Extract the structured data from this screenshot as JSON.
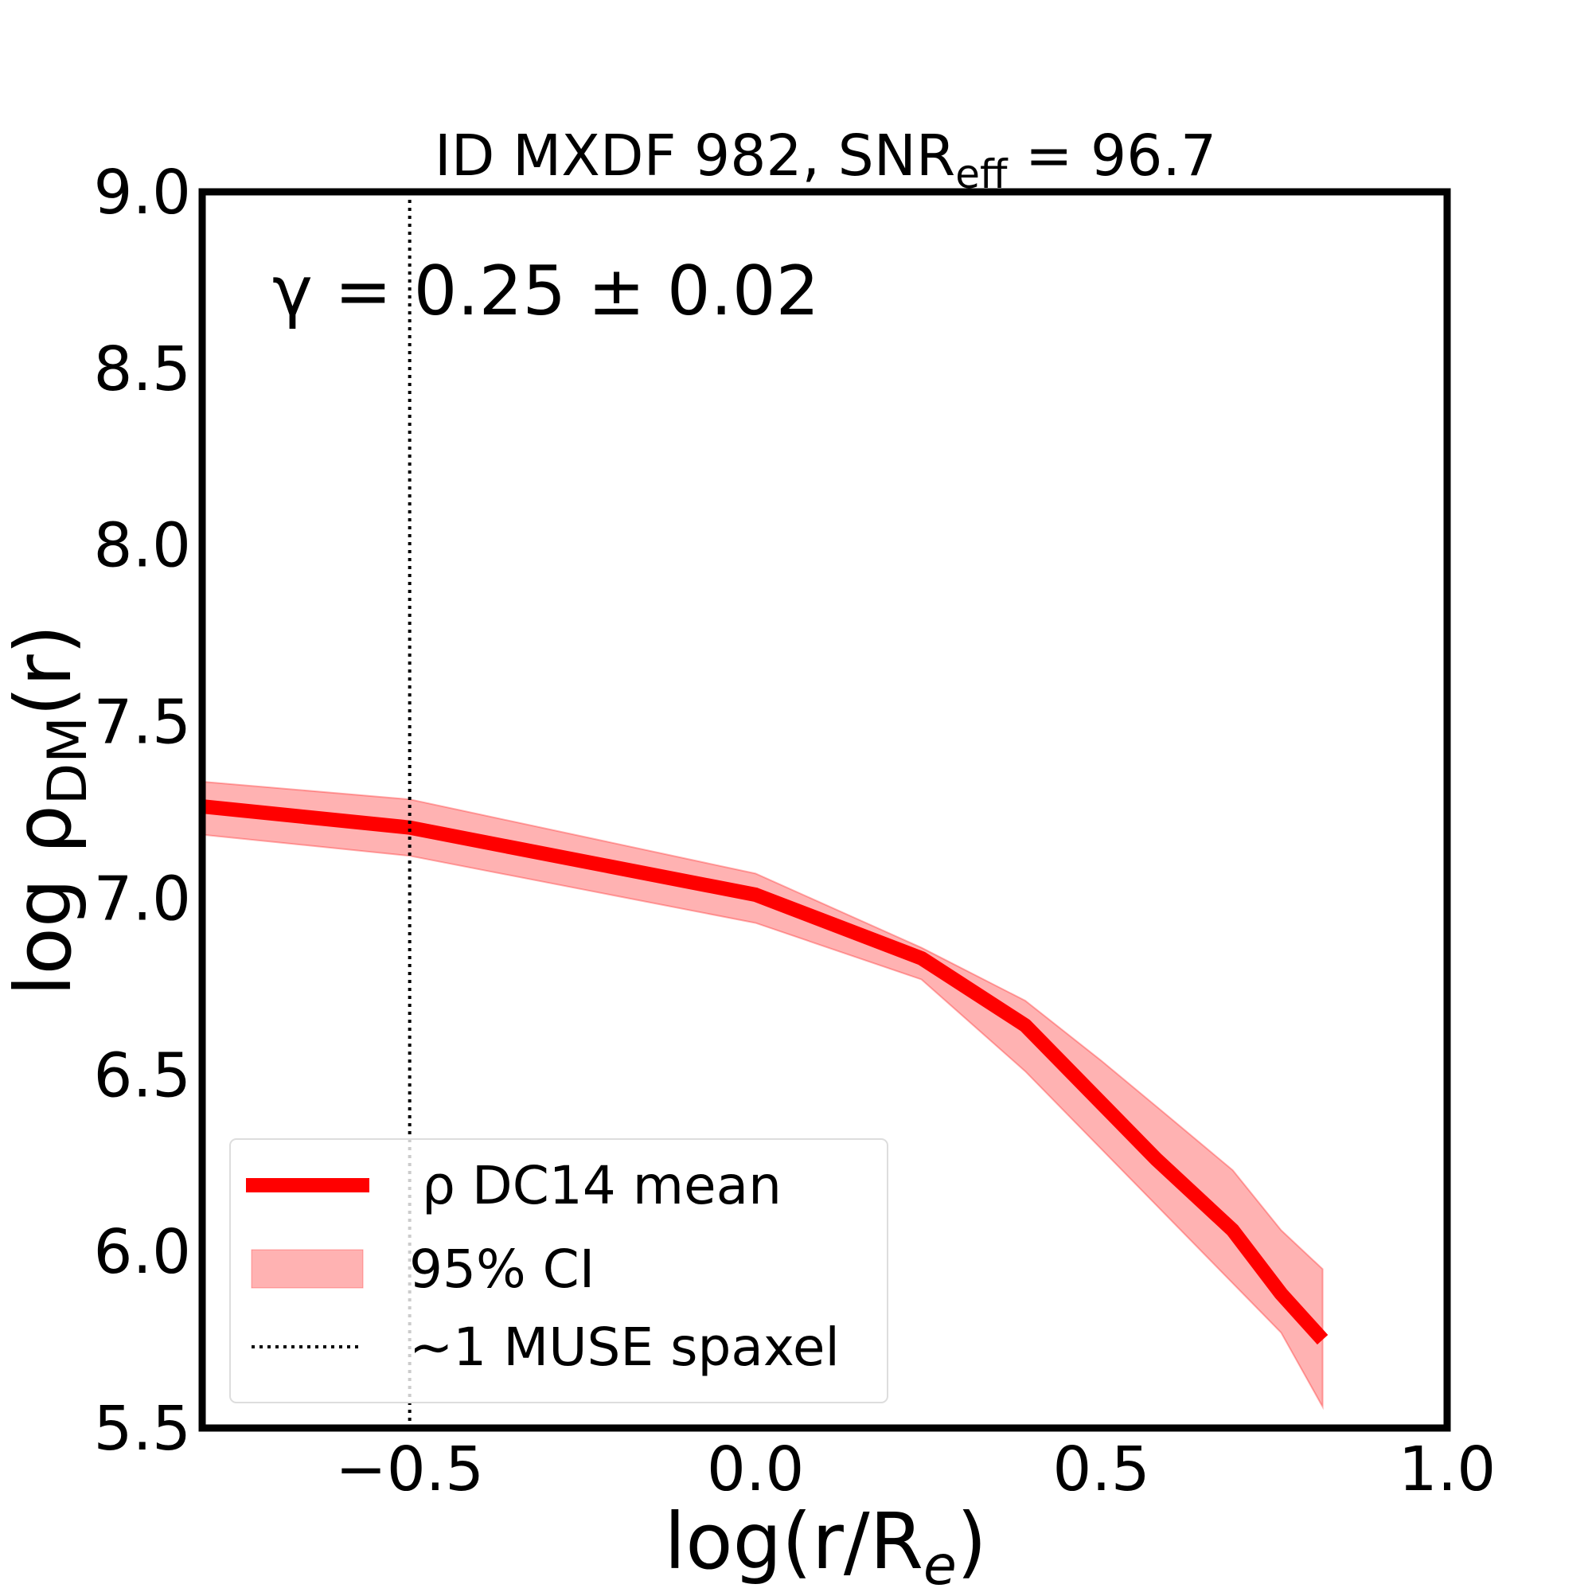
{
  "chart_data": {
    "type": "line",
    "title": {
      "prefix": "ID MXDF 982, SNR",
      "sub": "eff",
      "suffix": " = 96.7"
    },
    "xlabel": {
      "prefix": "log(r/R",
      "sub": "e",
      "suffix": ")"
    },
    "ylabel": {
      "prefix": "log ρ",
      "sub": "DM",
      "suffix": "(r)"
    },
    "annotation": "γ = 0.25 ± 0.02",
    "x": [
      -0.8,
      -0.5,
      0,
      0.24,
      0.39,
      0.5,
      0.58,
      0.69,
      0.76,
      0.82
    ],
    "series": [
      {
        "name": "ρ DC14 mean",
        "color": "#ff0000",
        "values": [
          7.26,
          7.2,
          7.01,
          6.83,
          6.64,
          6.42,
          6.26,
          6.06,
          5.88,
          5.75
        ]
      }
    ],
    "band": {
      "name": "95% CI",
      "color": "#ff0000",
      "lower": [
        7.18,
        7.12,
        6.93,
        6.77,
        6.51,
        6.29,
        6.13,
        5.91,
        5.77,
        5.56
      ],
      "upper": [
        7.33,
        7.28,
        7.07,
        6.86,
        6.71,
        6.54,
        6.41,
        6.23,
        6.06,
        5.95
      ]
    },
    "vline": {
      "x": -0.5,
      "name": "∼1 MUSE spaxel",
      "color": "#000000"
    },
    "xlim": [
      -0.8,
      1.0
    ],
    "ylim": [
      5.5,
      9.0
    ],
    "xticks": [
      {
        "value": -0.5,
        "label": "−0.5"
      },
      {
        "value": 0,
        "label": "0.0"
      },
      {
        "value": 0.5,
        "label": "0.5"
      },
      {
        "value": 1,
        "label": "1.0"
      }
    ],
    "yticks": [
      {
        "value": 5.5,
        "label": "5.5"
      },
      {
        "value": 6,
        "label": "6.0"
      },
      {
        "value": 6.5,
        "label": "6.5"
      },
      {
        "value": 7,
        "label": "7.0"
      },
      {
        "value": 7.5,
        "label": "7.5"
      },
      {
        "value": 8,
        "label": "8.0"
      },
      {
        "value": 8.5,
        "label": "8.5"
      },
      {
        "value": 9,
        "label": "9.0"
      }
    ],
    "grid": false,
    "legend": "lower left"
  }
}
